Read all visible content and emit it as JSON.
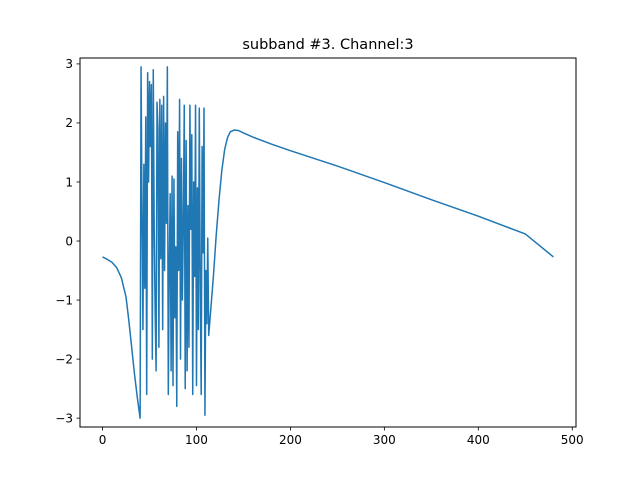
{
  "chart_data": {
    "type": "line",
    "title": "subband #3. Channel:3",
    "xlabel": "",
    "ylabel": "",
    "xlim": [
      -24,
      504
    ],
    "ylim": [
      -3.15,
      3.1
    ],
    "xticks": [
      0,
      100,
      200,
      300,
      400,
      500
    ],
    "xtick_labels": [
      "0",
      "100",
      "200",
      "300",
      "400",
      "500"
    ],
    "yticks": [
      -3,
      -2,
      -1,
      0,
      1,
      2,
      3
    ],
    "ytick_labels": [
      "−3",
      "−2",
      "−1",
      "0",
      "1",
      "2",
      "3"
    ],
    "grid": false,
    "legend": "none",
    "colors": {
      "line": "#1f77b4",
      "axes": "#000000",
      "background": "#ffffff"
    },
    "series": [
      {
        "x": [
          0,
          5,
          10,
          15,
          20,
          25,
          28,
          31,
          34,
          37,
          40,
          41,
          42,
          43,
          44,
          45,
          46,
          47,
          48,
          49,
          50,
          51,
          52,
          53,
          54,
          55,
          56,
          57,
          58,
          59,
          60,
          61,
          62,
          63,
          64,
          65,
          66,
          67,
          68,
          69,
          70,
          71,
          72,
          73,
          74,
          75,
          76,
          77,
          78,
          79,
          80,
          81,
          82,
          83,
          84,
          85,
          86,
          87,
          88,
          89,
          90,
          91,
          92,
          93,
          94,
          95,
          96,
          97,
          98,
          99,
          100,
          101,
          102,
          103,
          104,
          105,
          106,
          107,
          108,
          109,
          110,
          111,
          112,
          113,
          115,
          118,
          121,
          124,
          127,
          130,
          133,
          136,
          140,
          145,
          150,
          160,
          180,
          200,
          250,
          300,
          350,
          400,
          450,
          480
        ],
        "y": [
          -0.27,
          -0.31,
          -0.36,
          -0.45,
          -0.62,
          -0.95,
          -1.35,
          -1.8,
          -2.25,
          -2.65,
          -3.0,
          2.95,
          0.5,
          -1.5,
          1.3,
          -0.8,
          2.1,
          -2.6,
          2.85,
          1.0,
          2.7,
          1.6,
          2.65,
          -2.0,
          2.9,
          0.2,
          -1.2,
          -2.2,
          2.35,
          1.9,
          -1.8,
          2.4,
          -0.3,
          2.3,
          -1.5,
          2.45,
          -0.5,
          2.0,
          0.3,
          2.95,
          -2.6,
          -0.5,
          0.8,
          -2.2,
          1.1,
          -2.45,
          1.05,
          -1.3,
          -0.1,
          -2.8,
          1.85,
          -0.5,
          2.4,
          -2.0,
          1.4,
          -1.0,
          0.3,
          2.3,
          -2.5,
          1.7,
          -2.2,
          0.6,
          -1.8,
          2.3,
          0.2,
          1.8,
          -2.6,
          1.0,
          -0.6,
          2.3,
          -2.45,
          0.9,
          -1.5,
          2.25,
          -0.7,
          -2.6,
          1.6,
          -0.2,
          2.25,
          -2.95,
          -0.5,
          -1.4,
          0.05,
          -1.6,
          -1.2,
          -0.6,
          0.1,
          0.7,
          1.2,
          1.55,
          1.75,
          1.85,
          1.88,
          1.87,
          1.83,
          1.76,
          1.64,
          1.53,
          1.27,
          0.99,
          0.7,
          0.42,
          0.12,
          -0.27
        ]
      }
    ]
  }
}
